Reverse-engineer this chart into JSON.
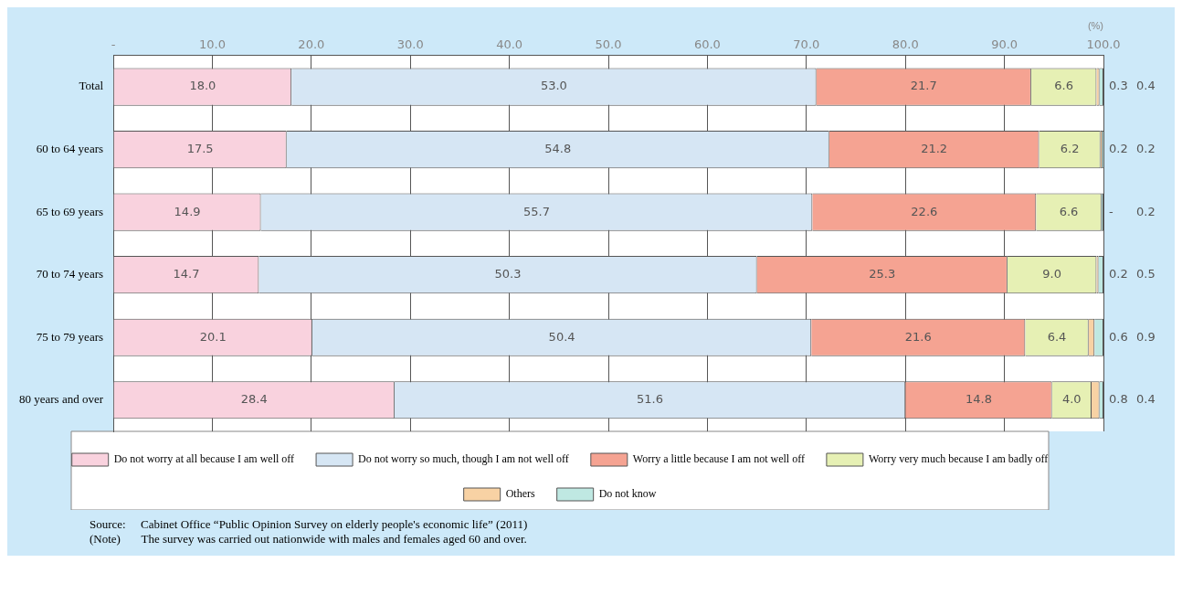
{
  "chart_data": {
    "type": "bar",
    "orientation": "horizontal",
    "stacked": true,
    "categories": [
      "Total",
      "60 to 64 years",
      "65 to 69 years",
      "70 to 74 years",
      "75 to 79 years",
      "80 years and over"
    ],
    "series": [
      {
        "name": "Do not worry at all because I am well off",
        "color": "#f9d2de",
        "values": [
          18.0,
          17.5,
          14.9,
          14.7,
          20.1,
          28.4
        ],
        "value_labels": [
          "18.0",
          "17.5",
          "14.9",
          "14.7",
          "20.1",
          "28.4"
        ]
      },
      {
        "name": "Do not worry so much, though I am not well off",
        "color": "#d6e6f4",
        "values": [
          53.0,
          54.8,
          55.7,
          50.3,
          50.4,
          51.6
        ],
        "value_labels": [
          "53.0",
          "54.8",
          "55.7",
          "50.3",
          "50.4",
          "51.6"
        ]
      },
      {
        "name": "Worry a little because I am not well off",
        "color": "#f5a392",
        "values": [
          21.7,
          21.2,
          22.6,
          25.3,
          21.6,
          14.8
        ],
        "value_labels": [
          "21.7",
          "21.2",
          "22.6",
          "25.3",
          "21.6",
          "14.8"
        ]
      },
      {
        "name": "Worry very much because I am badly off",
        "color": "#e6f0b4",
        "values": [
          6.6,
          6.2,
          6.6,
          9.0,
          6.4,
          4.0
        ],
        "value_labels": [
          "6.6",
          "6.2",
          "6.6",
          "9.0",
          "6.4",
          "4.0"
        ]
      },
      {
        "name": "Others",
        "color": "#f8d2a4",
        "values": [
          0.3,
          0.2,
          null,
          0.2,
          0.6,
          0.8
        ],
        "value_labels": [
          "0.3",
          "0.2",
          "-",
          "0.2",
          "0.6",
          "0.8"
        ]
      },
      {
        "name": "Do not know",
        "color": "#bfe8e2",
        "values": [
          0.4,
          0.2,
          0.2,
          0.5,
          0.9,
          0.4
        ],
        "value_labels": [
          "0.4",
          "0.2",
          "0.2",
          "0.5",
          "0.9",
          "0.4"
        ]
      }
    ],
    "xlabel": "(%)",
    "xlim": [
      0,
      100
    ],
    "xticks": [
      {
        "value": 0,
        "label": "-"
      },
      {
        "value": 10,
        "label": "10.0"
      },
      {
        "value": 20,
        "label": "20.0"
      },
      {
        "value": 30,
        "label": "30.0"
      },
      {
        "value": 40,
        "label": "40.0"
      },
      {
        "value": 50,
        "label": "50.0"
      },
      {
        "value": 60,
        "label": "60.0"
      },
      {
        "value": 70,
        "label": "70.0"
      },
      {
        "value": 80,
        "label": "80.0"
      },
      {
        "value": 90,
        "label": "90.0"
      },
      {
        "value": 100,
        "label": "100.0"
      }
    ],
    "grid": "x",
    "legend": "bottom",
    "annotations": [
      "Source:     Cabinet Office “Public Opinion Survey on elderly people's economic life” (2011)",
      "(Note)       The survey was carried out nationwide with males and females aged 60 and over."
    ]
  }
}
